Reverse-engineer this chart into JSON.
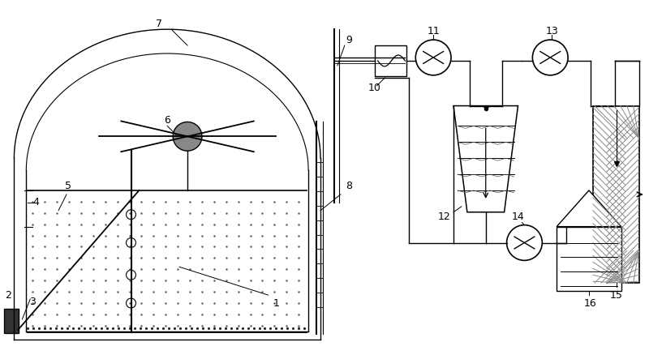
{
  "bg_color": "#ffffff",
  "line_color": "#000000",
  "fig_w": 8.0,
  "fig_h": 4.43,
  "dpi": 100
}
